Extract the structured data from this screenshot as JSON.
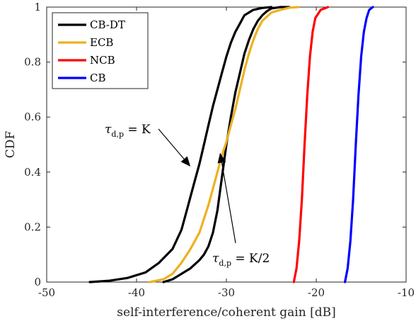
{
  "chart_data": {
    "type": "line",
    "title": "",
    "xlabel": "self-interference/coherent gain [dB]",
    "ylabel": "CDF",
    "xlim": [
      -50,
      -10
    ],
    "ylim": [
      0,
      1
    ],
    "xticks": [
      -50,
      -40,
      -30,
      -20,
      -10
    ],
    "yticks": [
      0,
      0.2,
      0.4,
      0.6,
      0.8,
      1
    ],
    "xtick_labels": [
      "-50",
      "-40",
      "-30",
      "-20",
      "-10"
    ],
    "ytick_labels": [
      "0",
      "0.2",
      "0.4",
      "0.6",
      "0.8",
      "1"
    ],
    "grid": false,
    "legend_position": "top-left",
    "colors": {
      "cb_dt": "#000000",
      "ecb": "#EDB120",
      "ncb": "#FF0000",
      "cb": "#0000FF",
      "axes": "#262626"
    },
    "series": [
      {
        "name": "CB-DT",
        "group": "tau = K",
        "color_key": "cb_dt",
        "x": [
          -45.2,
          -43.0,
          -41.0,
          -39.0,
          -37.5,
          -36.0,
          -35.0,
          -34.5,
          -34.0,
          -33.5,
          -33.0,
          -32.5,
          -32.0,
          -31.5,
          -31.0,
          -30.5,
          -30.0,
          -29.5,
          -29.0,
          -28.5,
          -28.0,
          -27.0,
          -26.0,
          -25.0
        ],
        "y": [
          0.0,
          0.005,
          0.015,
          0.035,
          0.07,
          0.12,
          0.19,
          0.25,
          0.31,
          0.37,
          0.43,
          0.5,
          0.57,
          0.64,
          0.7,
          0.76,
          0.82,
          0.87,
          0.91,
          0.94,
          0.97,
          0.99,
          0.997,
          1.0
        ]
      },
      {
        "name": "",
        "group": "tau = K/2",
        "color_key": "cb_dt",
        "x": [
          -37.0,
          -36.0,
          -35.0,
          -34.0,
          -33.0,
          -32.5,
          -32.0,
          -31.5,
          -31.0,
          -30.5,
          -30.0,
          -29.5,
          -29.0,
          -28.5,
          -28.0,
          -27.5,
          -27.0,
          -26.5,
          -26.0,
          -25.5,
          -25.0,
          -24.0,
          -23.0
        ],
        "y": [
          0.0,
          0.01,
          0.03,
          0.05,
          0.08,
          0.1,
          0.13,
          0.18,
          0.26,
          0.38,
          0.5,
          0.6,
          0.69,
          0.76,
          0.83,
          0.88,
          0.92,
          0.95,
          0.97,
          0.985,
          0.995,
          1.0,
          1.0
        ]
      },
      {
        "name": "ECB",
        "color_key": "ecb",
        "x": [
          -38.5,
          -37.0,
          -36.0,
          -35.0,
          -34.0,
          -33.0,
          -32.0,
          -31.5,
          -31.0,
          -30.5,
          -30.0,
          -29.5,
          -29.0,
          -28.5,
          -28.0,
          -27.5,
          -27.0,
          -26.5,
          -26.0,
          -25.0,
          -24.0,
          -23.0,
          -22.0
        ],
        "y": [
          0.0,
          0.01,
          0.03,
          0.07,
          0.12,
          0.18,
          0.28,
          0.34,
          0.4,
          0.46,
          0.51,
          0.57,
          0.63,
          0.7,
          0.77,
          0.83,
          0.88,
          0.92,
          0.95,
          0.98,
          0.99,
          0.998,
          1.0
        ]
      },
      {
        "name": "NCB",
        "color_key": "ncb",
        "x": [
          -22.5,
          -22.2,
          -21.9,
          -21.6,
          -21.3,
          -21.0,
          -20.7,
          -20.4,
          -20.1,
          -19.5,
          -18.7
        ],
        "y": [
          0.0,
          0.05,
          0.15,
          0.3,
          0.5,
          0.68,
          0.82,
          0.91,
          0.96,
          0.99,
          1.0
        ]
      },
      {
        "name": "CB",
        "color_key": "cb",
        "x": [
          -16.8,
          -16.5,
          -16.2,
          -15.9,
          -15.6,
          -15.3,
          -15.0,
          -14.7,
          -14.4,
          -14.1,
          -13.7
        ],
        "y": [
          0.0,
          0.05,
          0.15,
          0.3,
          0.5,
          0.68,
          0.82,
          0.91,
          0.96,
          0.99,
          1.0
        ]
      }
    ],
    "legend_entries": [
      {
        "label": "CB-DT",
        "color_key": "cb_dt"
      },
      {
        "label": "ECB",
        "color_key": "ecb"
      },
      {
        "label": "NCB",
        "color_key": "ncb"
      },
      {
        "label": "CB",
        "color_key": "cb"
      }
    ],
    "annotations": [
      {
        "id": "tau-k",
        "tau": "τ",
        "sub": "d,p",
        "rhs": " = K",
        "arrow_to": [
          -34.0,
          0.42
        ]
      },
      {
        "id": "tau-k2",
        "tau": "τ",
        "sub": "d,p",
        "rhs": " = K/2",
        "arrow_to": [
          -30.7,
          0.47
        ]
      }
    ]
  }
}
